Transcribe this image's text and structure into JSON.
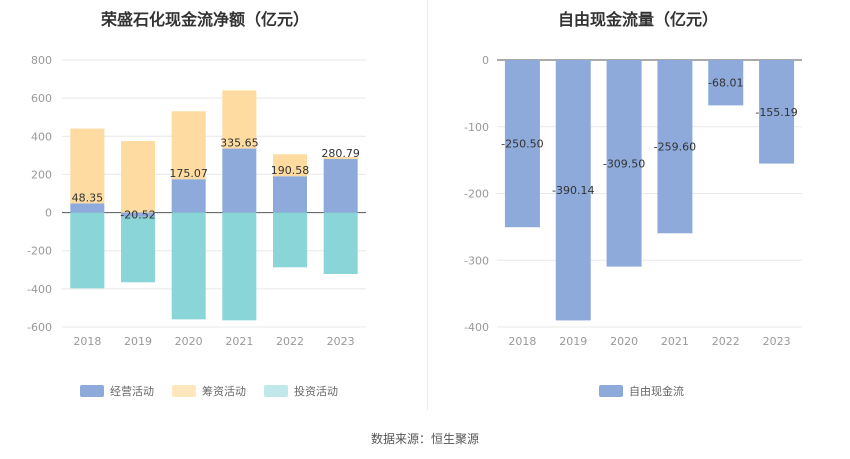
{
  "source": "数据来源：恒生聚源",
  "chart_data": [
    {
      "type": "bar",
      "stacked": true,
      "title": "荣盛石化现金流净额（亿元）",
      "categories": [
        "2018",
        "2019",
        "2020",
        "2021",
        "2022",
        "2023"
      ],
      "ylim": [
        -600,
        800
      ],
      "yticks": [
        800,
        600,
        400,
        200,
        0,
        -200,
        -400,
        -600
      ],
      "series": [
        {
          "name": "经营活动",
          "color": "#8eaadb",
          "values": [
            48.35,
            -20.52,
            175.07,
            335.65,
            190.58,
            280.79
          ]
        },
        {
          "name": "筹资活动",
          "color": "#fedba0",
          "values": [
            392,
            375,
            356,
            305,
            115,
            10
          ]
        },
        {
          "name": "投资活动",
          "color": "#8ad5d7",
          "values": [
            -397,
            -345,
            -560,
            -565,
            -287,
            -322
          ]
        }
      ],
      "data_labels": [
        "48.35",
        "-20.52",
        "175.07",
        "335.65",
        "190.58",
        "280.79"
      ],
      "grid": true,
      "legend_position": "bottom"
    },
    {
      "type": "bar",
      "title": "自由现金流量（亿元）",
      "categories": [
        "2018",
        "2019",
        "2020",
        "2021",
        "2022",
        "2023"
      ],
      "ylim": [
        -400,
        0
      ],
      "yticks": [
        0,
        -100,
        -200,
        -300,
        -400
      ],
      "series": [
        {
          "name": "自由现金流",
          "color": "#8eaadb",
          "values": [
            -250.5,
            -390.14,
            -309.5,
            -259.6,
            -68.01,
            -155.19
          ]
        }
      ],
      "data_labels": [
        "-250.50",
        "-390.14",
        "-309.50",
        "-259.60",
        "-68.01",
        "-155.19"
      ],
      "grid": true,
      "legend_position": "bottom"
    }
  ]
}
